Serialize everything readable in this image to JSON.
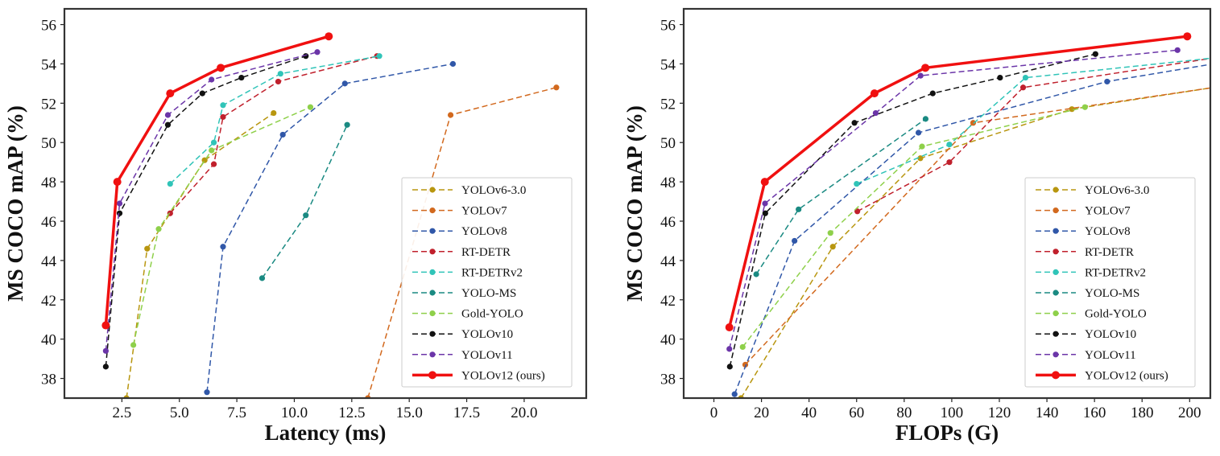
{
  "chart_data": [
    {
      "type": "line",
      "xlabel": "Latency (ms)",
      "ylabel": "MS COCO mAP (%)",
      "xlim": [
        0,
        22.7
      ],
      "ylim": [
        37,
        56.8
      ],
      "xticks": [
        2.5,
        5.0,
        7.5,
        10.0,
        12.5,
        15.0,
        17.5,
        20.0
      ],
      "xtick_labels": [
        "2.5",
        "5.0",
        "7.5",
        "10.0",
        "12.5",
        "15.0",
        "17.5",
        "20.0"
      ],
      "yticks": [
        38,
        40,
        42,
        44,
        46,
        48,
        50,
        52,
        54,
        56
      ],
      "ytick_labels": [
        "38",
        "40",
        "42",
        "44",
        "46",
        "48",
        "50",
        "52",
        "54",
        "56"
      ],
      "legend_position": "bottom-right",
      "series": [
        {
          "name": "YOLOv6-3.0",
          "color": "#b8960f",
          "style": "dashed",
          "x": [
            2.7,
            3.6,
            6.1,
            9.1
          ],
          "y": [
            37.0,
            44.6,
            49.1,
            51.5
          ]
        },
        {
          "name": "YOLOv7",
          "color": "#d2691e",
          "style": "dashed",
          "x": [
            13.2,
            16.8,
            21.4
          ],
          "y": [
            37.0,
            51.4,
            52.8
          ]
        },
        {
          "name": "YOLOv8",
          "color": "#3057a8",
          "style": "dashed",
          "x": [
            6.2,
            6.9,
            9.5,
            12.2,
            16.9
          ],
          "y": [
            37.3,
            44.7,
            50.4,
            53.0,
            54.0
          ]
        },
        {
          "name": "RT-DETR",
          "color": "#c0202c",
          "style": "dashed",
          "x": [
            4.6,
            6.5,
            6.9,
            9.3,
            13.6
          ],
          "y": [
            46.4,
            48.9,
            51.3,
            53.1,
            54.4
          ]
        },
        {
          "name": "RT-DETRv2",
          "color": "#30c4b8",
          "style": "dashed",
          "x": [
            4.6,
            6.5,
            6.9,
            9.4,
            13.7
          ],
          "y": [
            47.9,
            50.0,
            51.9,
            53.5,
            54.4
          ]
        },
        {
          "name": "YOLO-MS",
          "color": "#1a8a82",
          "style": "dashed",
          "x": [
            8.6,
            10.5,
            12.3
          ],
          "y": [
            43.1,
            46.3,
            50.9
          ]
        },
        {
          "name": "Gold-YOLO",
          "color": "#8ed04a",
          "style": "dashed",
          "x": [
            3.0,
            4.1,
            6.4,
            10.7
          ],
          "y": [
            39.7,
            45.6,
            49.6,
            51.8
          ]
        },
        {
          "name": "YOLOv10",
          "color": "#111111",
          "style": "dashed",
          "x": [
            1.8,
            2.4,
            4.5,
            6.0,
            7.7,
            10.5
          ],
          "y": [
            38.6,
            46.4,
            50.9,
            52.5,
            53.3,
            54.4
          ]
        },
        {
          "name": "YOLOv11",
          "color": "#6b35a8",
          "style": "dashed",
          "x": [
            1.8,
            2.4,
            4.5,
            6.4,
            11.0
          ],
          "y": [
            39.4,
            46.9,
            51.4,
            53.2,
            54.6
          ]
        },
        {
          "name": "YOLOv12 (ours)",
          "color": "#f01010",
          "style": "solid",
          "x": [
            1.8,
            2.3,
            4.6,
            6.8,
            11.5
          ],
          "y": [
            40.7,
            48.0,
            52.5,
            53.8,
            55.4
          ]
        }
      ]
    },
    {
      "type": "line",
      "xlabel": "FLOPs (G)",
      "ylabel": "MS COCO mAP (%)",
      "xlim": [
        -12.7,
        208.7
      ],
      "ylim": [
        37,
        56.8
      ],
      "xticks": [
        0,
        20,
        40,
        60,
        80,
        100,
        120,
        140,
        160,
        180,
        200
      ],
      "xtick_labels": [
        "0",
        "20",
        "40",
        "60",
        "80",
        "100",
        "120",
        "140",
        "160",
        "180",
        "200"
      ],
      "yticks": [
        38,
        40,
        42,
        44,
        46,
        48,
        50,
        52,
        54,
        56
      ],
      "ytick_labels": [
        "38",
        "40",
        "42",
        "44",
        "46",
        "48",
        "50",
        "52",
        "54",
        "56"
      ],
      "legend_position": "bottom-right",
      "series": [
        {
          "name": "YOLOv6-3.0",
          "color": "#b8960f",
          "style": "dashed",
          "x": [
            11.4,
            50.0,
            86.8,
            150.5,
            210.0
          ],
          "y": [
            37.0,
            44.7,
            49.2,
            51.7,
            52.8
          ]
        },
        {
          "name": "YOLOv7",
          "color": "#d2691e",
          "style": "dashed",
          "x": [
            13.2,
            109.0,
            210.0
          ],
          "y": [
            38.7,
            51.0,
            52.8
          ]
        },
        {
          "name": "YOLOv8",
          "color": "#3057a8",
          "style": "dashed",
          "x": [
            8.7,
            33.9,
            86.0,
            165.3,
            210.0
          ],
          "y": [
            37.2,
            45.0,
            50.5,
            53.1,
            54.0
          ]
        },
        {
          "name": "RT-DETR",
          "color": "#c0202c",
          "style": "dashed",
          "x": [
            60.3,
            99.0,
            130.0,
            210.0
          ],
          "y": [
            46.5,
            49.0,
            52.8,
            54.3
          ]
        },
        {
          "name": "RT-DETRv2",
          "color": "#30c4b8",
          "style": "dashed",
          "x": [
            60.0,
            99.0,
            131.0,
            210.0
          ],
          "y": [
            47.9,
            49.9,
            53.3,
            54.3
          ]
        },
        {
          "name": "YOLO-MS",
          "color": "#1a8a82",
          "style": "dashed",
          "x": [
            17.8,
            35.6,
            89.0
          ],
          "y": [
            43.3,
            46.6,
            51.2
          ]
        },
        {
          "name": "Gold-YOLO",
          "color": "#8ed04a",
          "style": "dashed",
          "x": [
            12.1,
            49.0,
            87.5,
            156.0
          ],
          "y": [
            39.6,
            45.4,
            49.8,
            51.8
          ]
        },
        {
          "name": "YOLOv10",
          "color": "#111111",
          "style": "dashed",
          "x": [
            6.7,
            21.6,
            59.1,
            92.0,
            120.3,
            160.4
          ],
          "y": [
            38.6,
            46.4,
            51.0,
            52.5,
            53.3,
            54.5
          ]
        },
        {
          "name": "YOLOv11",
          "color": "#6b35a8",
          "style": "dashed",
          "x": [
            6.5,
            21.5,
            68.0,
            86.9,
            194.9
          ],
          "y": [
            39.5,
            46.9,
            51.5,
            53.4,
            54.7
          ]
        },
        {
          "name": "YOLOv12 (ours)",
          "color": "#f01010",
          "style": "solid",
          "x": [
            6.5,
            21.4,
            67.5,
            88.9,
            199.0
          ],
          "y": [
            40.6,
            48.0,
            52.5,
            53.8,
            55.4
          ]
        }
      ]
    }
  ]
}
